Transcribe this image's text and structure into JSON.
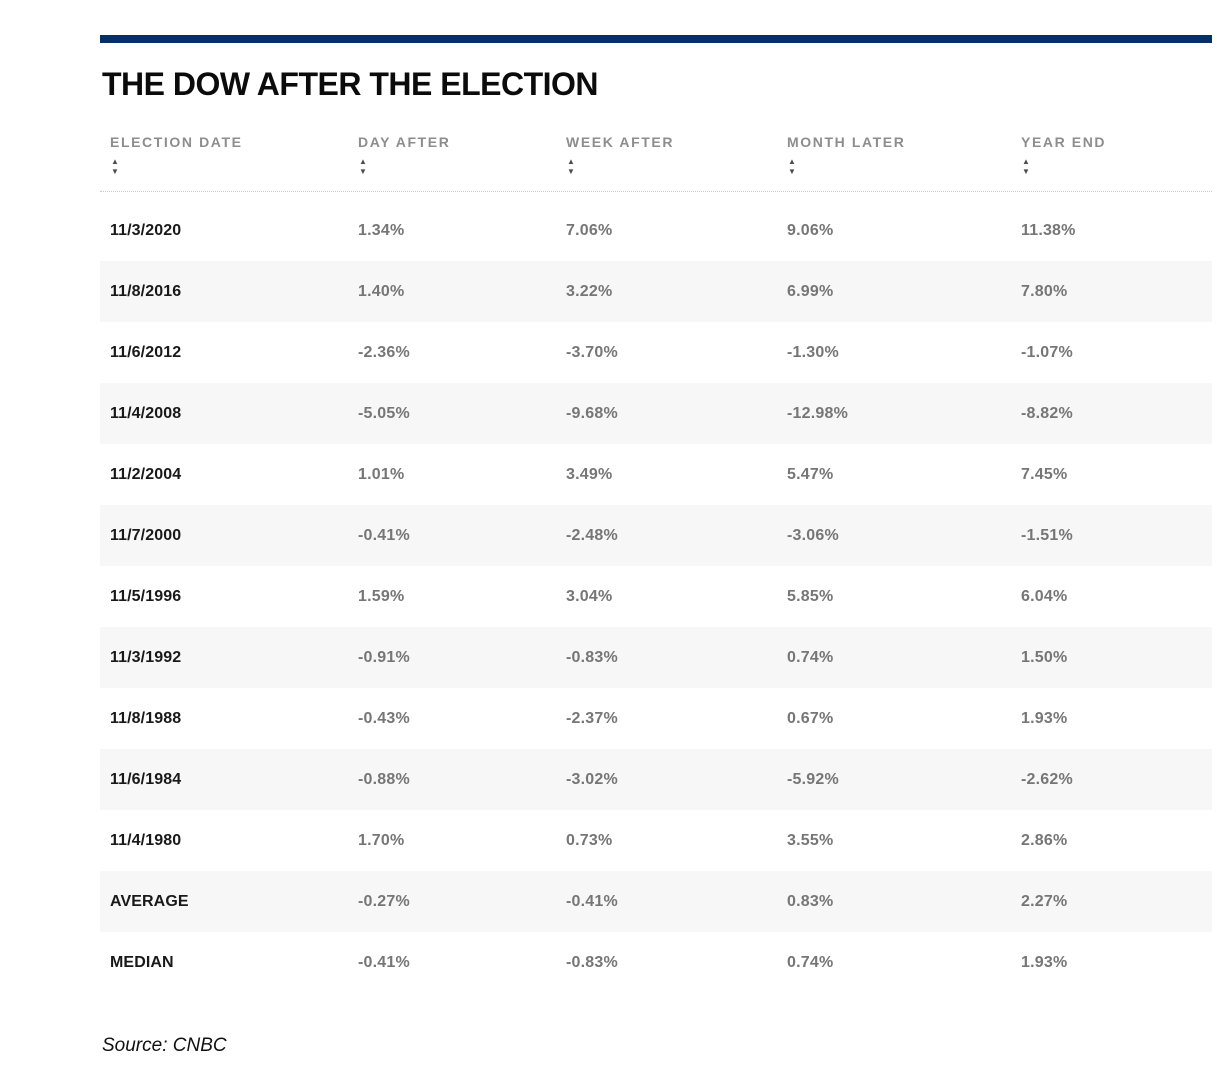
{
  "page": {
    "title": "THE DOW AFTER THE ELECTION",
    "source": "Source: CNBC",
    "accent_color": "#04306a",
    "stripe_color": "#f7f7f7"
  },
  "icons": {
    "sort_asc": "▲",
    "sort_desc": "▼"
  },
  "table": {
    "columns": [
      {
        "label": "ELECTION DATE"
      },
      {
        "label": "DAY AFTER"
      },
      {
        "label": "WEEK AFTER"
      },
      {
        "label": "MONTH LATER"
      },
      {
        "label": "YEAR END"
      }
    ],
    "rows": [
      [
        "11/3/2020",
        "1.34%",
        "7.06%",
        "9.06%",
        "11.38%"
      ],
      [
        "11/8/2016",
        "1.40%",
        "3.22%",
        "6.99%",
        "7.80%"
      ],
      [
        "11/6/2012",
        "-2.36%",
        "-3.70%",
        "-1.30%",
        "-1.07%"
      ],
      [
        "11/4/2008",
        "-5.05%",
        "-9.68%",
        "-12.98%",
        "-8.82%"
      ],
      [
        "11/2/2004",
        "1.01%",
        "3.49%",
        "5.47%",
        "7.45%"
      ],
      [
        "11/7/2000",
        "-0.41%",
        "-2.48%",
        "-3.06%",
        "-1.51%"
      ],
      [
        "11/5/1996",
        "1.59%",
        "3.04%",
        "5.85%",
        "6.04%"
      ],
      [
        "11/3/1992",
        "-0.91%",
        "-0.83%",
        "0.74%",
        "1.50%"
      ],
      [
        "11/8/1988",
        "-0.43%",
        "-2.37%",
        "0.67%",
        "1.93%"
      ],
      [
        "11/6/1984",
        "-0.88%",
        "-3.02%",
        "-5.92%",
        "-2.62%"
      ],
      [
        "11/4/1980",
        "1.70%",
        "0.73%",
        "3.55%",
        "2.86%"
      ],
      [
        "AVERAGE",
        "-0.27%",
        "-0.41%",
        "0.83%",
        "2.27%"
      ],
      [
        "MEDIAN",
        "-0.41%",
        "-0.83%",
        "0.74%",
        "1.93%"
      ]
    ]
  },
  "chart_data": {
    "type": "table",
    "title": "THE DOW AFTER THE ELECTION",
    "columns": [
      "ELECTION DATE",
      "DAY AFTER",
      "WEEK AFTER",
      "MONTH LATER",
      "YEAR END"
    ],
    "rows": [
      [
        "11/3/2020",
        1.34,
        7.06,
        9.06,
        11.38
      ],
      [
        "11/8/2016",
        1.4,
        3.22,
        6.99,
        7.8
      ],
      [
        "11/6/2012",
        -2.36,
        -3.7,
        -1.3,
        -1.07
      ],
      [
        "11/4/2008",
        -5.05,
        -9.68,
        -12.98,
        -8.82
      ],
      [
        "11/2/2004",
        1.01,
        3.49,
        5.47,
        7.45
      ],
      [
        "11/7/2000",
        -0.41,
        -2.48,
        -3.06,
        -1.51
      ],
      [
        "11/5/1996",
        1.59,
        3.04,
        5.85,
        6.04
      ],
      [
        "11/3/1992",
        -0.91,
        -0.83,
        0.74,
        1.5
      ],
      [
        "11/8/1988",
        -0.43,
        -2.37,
        0.67,
        1.93
      ],
      [
        "11/6/1984",
        -0.88,
        -3.02,
        -5.92,
        -2.62
      ],
      [
        "11/4/1980",
        1.7,
        0.73,
        3.55,
        2.86
      ],
      [
        "AVERAGE",
        -0.27,
        -0.41,
        0.83,
        2.27
      ],
      [
        "MEDIAN",
        -0.41,
        -0.83,
        0.74,
        1.93
      ]
    ],
    "units": "percent",
    "source": "Source: CNBC"
  }
}
